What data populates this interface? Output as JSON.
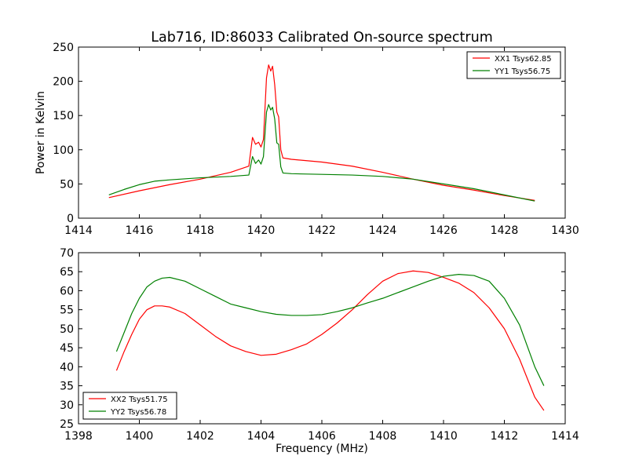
{
  "chart_data": [
    {
      "type": "line",
      "title": "Lab716, ID:86033 Calibrated On-source spectrum",
      "xlabel": "",
      "ylabel": "Power in Kelvin",
      "xlim": [
        1414,
        1430
      ],
      "ylim": [
        0,
        250
      ],
      "xticks": [
        1414,
        1416,
        1418,
        1420,
        1422,
        1424,
        1426,
        1428,
        1430
      ],
      "yticks": [
        0,
        50,
        100,
        150,
        200,
        250
      ],
      "grid": false,
      "legend_position": "top-right",
      "series": [
        {
          "name": "XX1 Tsys62.85",
          "color": "#ff0000",
          "points": [
            [
              1415.0,
              30
            ],
            [
              1416.0,
              40
            ],
            [
              1417.0,
              49
            ],
            [
              1418.0,
              57
            ],
            [
              1419.0,
              67
            ],
            [
              1419.6,
              76
            ],
            [
              1419.72,
              118
            ],
            [
              1419.82,
              108
            ],
            [
              1419.92,
              111
            ],
            [
              1420.0,
              104
            ],
            [
              1420.08,
              115
            ],
            [
              1420.18,
              205
            ],
            [
              1420.25,
              224
            ],
            [
              1420.32,
              215
            ],
            [
              1420.38,
              222
            ],
            [
              1420.45,
              195
            ],
            [
              1420.52,
              155
            ],
            [
              1420.58,
              148
            ],
            [
              1420.65,
              100
            ],
            [
              1420.72,
              88
            ],
            [
              1421.0,
              86
            ],
            [
              1422.0,
              82
            ],
            [
              1423.0,
              76
            ],
            [
              1424.0,
              67
            ],
            [
              1425.0,
              57
            ],
            [
              1426.0,
              48
            ],
            [
              1427.0,
              41
            ],
            [
              1428.0,
              33
            ],
            [
              1429.0,
              26
            ]
          ]
        },
        {
          "name": "YY1 Tsys56.75",
          "color": "#008000",
          "points": [
            [
              1415.0,
              34
            ],
            [
              1415.5,
              42
            ],
            [
              1416.0,
              49
            ],
            [
              1416.5,
              54
            ],
            [
              1417.0,
              56
            ],
            [
              1418.0,
              59
            ],
            [
              1419.0,
              61
            ],
            [
              1419.6,
              63
            ],
            [
              1419.72,
              90
            ],
            [
              1419.82,
              80
            ],
            [
              1419.92,
              85
            ],
            [
              1420.0,
              79
            ],
            [
              1420.08,
              90
            ],
            [
              1420.18,
              155
            ],
            [
              1420.25,
              166
            ],
            [
              1420.32,
              158
            ],
            [
              1420.38,
              162
            ],
            [
              1420.45,
              145
            ],
            [
              1420.52,
              110
            ],
            [
              1420.58,
              108
            ],
            [
              1420.65,
              75
            ],
            [
              1420.72,
              66
            ],
            [
              1421.0,
              65
            ],
            [
              1422.0,
              64
            ],
            [
              1423.0,
              63
            ],
            [
              1424.0,
              61
            ],
            [
              1425.0,
              57
            ],
            [
              1426.0,
              50
            ],
            [
              1427.0,
              43
            ],
            [
              1428.0,
              34
            ],
            [
              1429.0,
              25
            ]
          ]
        }
      ]
    },
    {
      "type": "line",
      "title": "",
      "xlabel": "Frequency (MHz)",
      "ylabel": "",
      "xlim": [
        1398,
        1414
      ],
      "ylim": [
        25,
        70
      ],
      "xticks": [
        1398,
        1400,
        1402,
        1404,
        1406,
        1408,
        1410,
        1412,
        1414
      ],
      "yticks": [
        25,
        30,
        35,
        40,
        45,
        50,
        55,
        60,
        65,
        70
      ],
      "grid": false,
      "legend_position": "bottom-left",
      "series": [
        {
          "name": "XX2 Tsys51.75",
          "color": "#ff0000",
          "points": [
            [
              1399.25,
              39
            ],
            [
              1399.5,
              44
            ],
            [
              1399.75,
              48.5
            ],
            [
              1400.0,
              52.5
            ],
            [
              1400.25,
              55
            ],
            [
              1400.5,
              56
            ],
            [
              1400.75,
              56
            ],
            [
              1401.0,
              55.7
            ],
            [
              1401.5,
              54
            ],
            [
              1402.0,
              51
            ],
            [
              1402.5,
              48
            ],
            [
              1403.0,
              45.5
            ],
            [
              1403.5,
              44
            ],
            [
              1404.0,
              43
            ],
            [
              1404.5,
              43.3
            ],
            [
              1405.0,
              44.5
            ],
            [
              1405.5,
              46
            ],
            [
              1406.0,
              48.5
            ],
            [
              1406.5,
              51.5
            ],
            [
              1407.0,
              55
            ],
            [
              1407.5,
              59
            ],
            [
              1408.0,
              62.5
            ],
            [
              1408.5,
              64.5
            ],
            [
              1409.0,
              65.2
            ],
            [
              1409.5,
              64.8
            ],
            [
              1410.0,
              63.5
            ],
            [
              1410.5,
              62
            ],
            [
              1411.0,
              59.5
            ],
            [
              1411.5,
              55.5
            ],
            [
              1412.0,
              50
            ],
            [
              1412.5,
              42
            ],
            [
              1413.0,
              32
            ],
            [
              1413.3,
              28.5
            ]
          ]
        },
        {
          "name": "YY2 Tsys56.78",
          "color": "#008000",
          "points": [
            [
              1399.25,
              44
            ],
            [
              1399.5,
              49
            ],
            [
              1399.75,
              54
            ],
            [
              1400.0,
              58
            ],
            [
              1400.25,
              61
            ],
            [
              1400.5,
              62.5
            ],
            [
              1400.75,
              63.3
            ],
            [
              1401.0,
              63.5
            ],
            [
              1401.5,
              62.5
            ],
            [
              1402.0,
              60.5
            ],
            [
              1402.5,
              58.5
            ],
            [
              1403.0,
              56.5
            ],
            [
              1403.5,
              55.5
            ],
            [
              1404.0,
              54.5
            ],
            [
              1404.5,
              53.8
            ],
            [
              1405.0,
              53.5
            ],
            [
              1405.5,
              53.5
            ],
            [
              1406.0,
              53.7
            ],
            [
              1406.5,
              54.5
            ],
            [
              1407.0,
              55.5
            ],
            [
              1407.5,
              56.8
            ],
            [
              1408.0,
              58
            ],
            [
              1408.5,
              59.5
            ],
            [
              1409.0,
              61
            ],
            [
              1409.5,
              62.5
            ],
            [
              1410.0,
              63.8
            ],
            [
              1410.5,
              64.3
            ],
            [
              1411.0,
              64
            ],
            [
              1411.5,
              62.5
            ],
            [
              1412.0,
              58
            ],
            [
              1412.5,
              51
            ],
            [
              1413.0,
              40
            ],
            [
              1413.3,
              35
            ]
          ]
        }
      ]
    }
  ]
}
